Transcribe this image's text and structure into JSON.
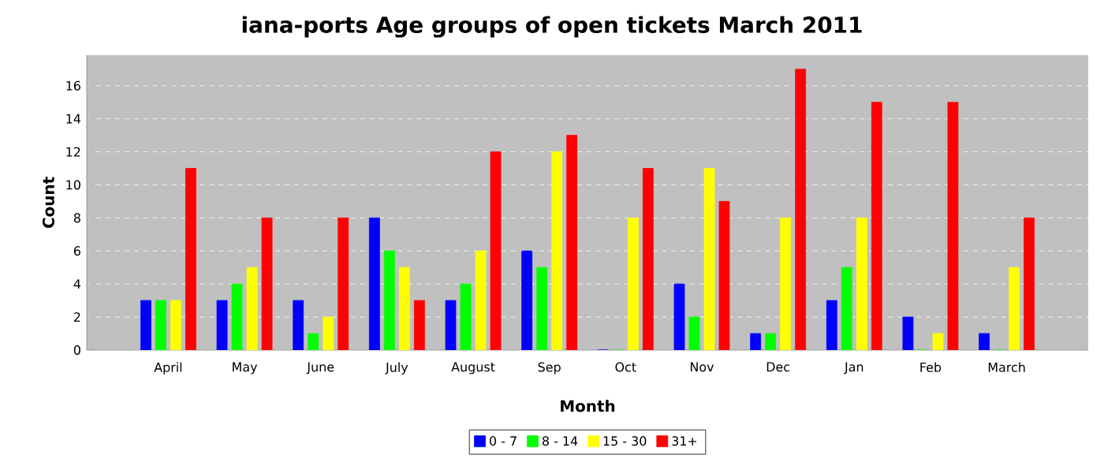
{
  "chart_data": {
    "type": "bar",
    "title": "iana-ports Age groups of open tickets March 2011",
    "xlabel": "Month",
    "ylabel": "Count",
    "categories": [
      "April",
      "May",
      "June",
      "July",
      "August",
      "Sep",
      "Oct",
      "Nov",
      "Dec",
      "Jan",
      "Feb",
      "March"
    ],
    "series": [
      {
        "name": "0 - 7",
        "color": "#0000ff",
        "values": [
          3,
          3,
          3,
          8,
          3,
          6,
          0,
          4,
          1,
          3,
          2,
          1
        ]
      },
      {
        "name": "8 - 14",
        "color": "#00ff00",
        "values": [
          3,
          4,
          1,
          6,
          4,
          5,
          0,
          2,
          1,
          5,
          0,
          0
        ]
      },
      {
        "name": "15 - 30",
        "color": "#ffff00",
        "values": [
          3,
          5,
          2,
          5,
          6,
          12,
          8,
          11,
          8,
          8,
          1,
          5
        ]
      },
      {
        "name": "31+",
        "color": "#ff0000",
        "values": [
          11,
          8,
          8,
          3,
          12,
          13,
          11,
          9,
          17,
          15,
          15,
          8
        ]
      }
    ],
    "ylim": [
      0,
      17.85
    ],
    "yticks": [
      0,
      2,
      4,
      6,
      8,
      10,
      12,
      14,
      16
    ],
    "grid": "y",
    "legend": "bottom"
  }
}
